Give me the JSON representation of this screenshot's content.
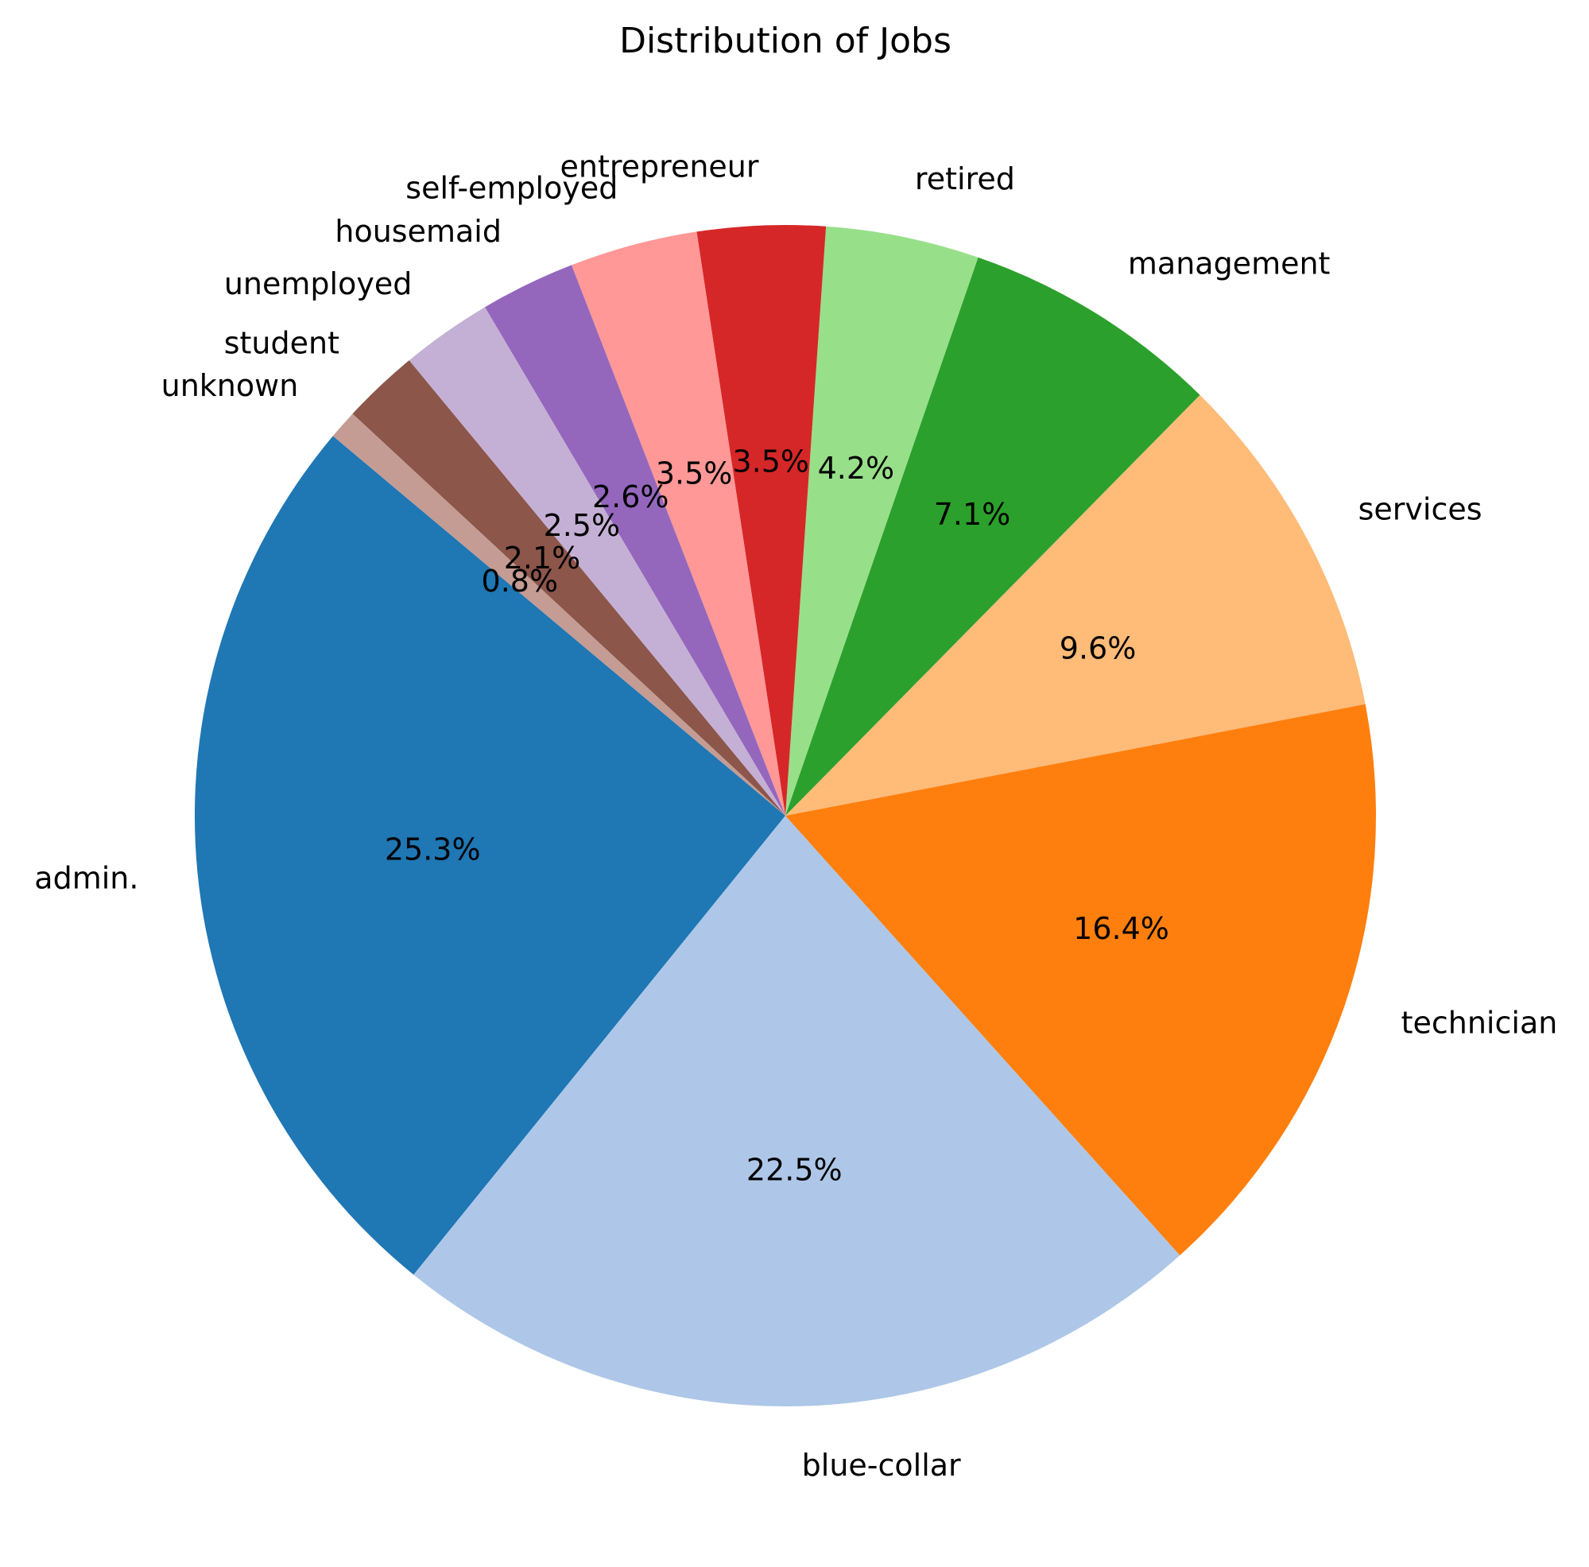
{
  "chart_data": {
    "type": "pie",
    "title": "Distribution of Jobs",
    "start_angle_deg": 140,
    "direction": "counterclockwise",
    "slices": [
      {
        "label": "admin.",
        "value": 25.3,
        "pct_text": "25.3%",
        "color": "#1f77b4"
      },
      {
        "label": "blue-collar",
        "value": 22.5,
        "pct_text": "22.5%",
        "color": "#aec7e8"
      },
      {
        "label": "technician",
        "value": 16.4,
        "pct_text": "16.4%",
        "color": "#ff7f0e"
      },
      {
        "label": "services",
        "value": 9.6,
        "pct_text": "9.6%",
        "color": "#ffbb78"
      },
      {
        "label": "management",
        "value": 7.1,
        "pct_text": "7.1%",
        "color": "#2ca02c"
      },
      {
        "label": "retired",
        "value": 4.2,
        "pct_text": "4.2%",
        "color": "#98df8a"
      },
      {
        "label": "entrepreneur",
        "value": 3.5,
        "pct_text": "3.5%",
        "color": "#d62728"
      },
      {
        "label": "self-employed",
        "value": 3.5,
        "pct_text": "3.5%",
        "color": "#ff9896"
      },
      {
        "label": "housemaid",
        "value": 2.6,
        "pct_text": "2.6%",
        "color": "#9467bd"
      },
      {
        "label": "unemployed",
        "value": 2.5,
        "pct_text": "2.5%",
        "color": "#c5b0d5"
      },
      {
        "label": "student",
        "value": 2.1,
        "pct_text": "2.1%",
        "color": "#8c564b"
      },
      {
        "label": "unknown",
        "value": 0.8,
        "pct_text": "0.8%",
        "color": "#c49c94"
      }
    ]
  }
}
